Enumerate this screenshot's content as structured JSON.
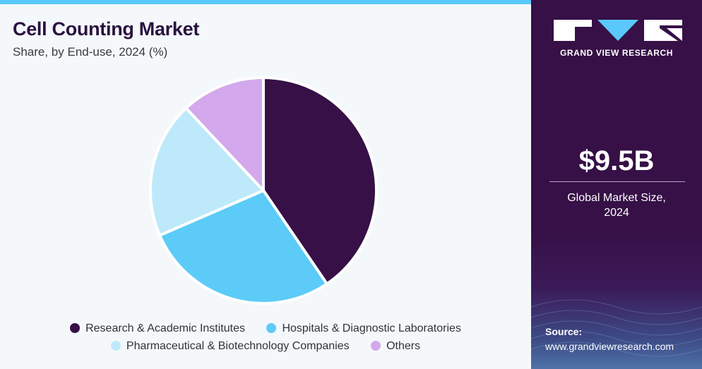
{
  "header": {
    "title": "Cell Counting Market",
    "subtitle": "Share, by End-use, 2024 (%)"
  },
  "sidebar": {
    "brand": "GRAND VIEW RESEARCH",
    "market_size": "$9.5B",
    "market_size_label_line1": "Global Market Size,",
    "market_size_label_line2": "2024",
    "source_label": "Source:",
    "source_url": "www.grandviewresearch.com"
  },
  "colors": {
    "accent_bar": "#5ac8fa",
    "sidebar_bg": "#361046",
    "title": "#2b1240"
  },
  "chart_data": {
    "type": "pie",
    "title": "Cell Counting Market",
    "subtitle": "Share, by End-use, 2024 (%)",
    "legend_position": "bottom",
    "slices": [
      {
        "label": "Research & Academic Institutes",
        "value": 40.5,
        "color": "#361046"
      },
      {
        "label": "Hospitals & Diagnostic Laboratories",
        "value": 28.0,
        "color": "#5ccbf8"
      },
      {
        "label": "Pharmaceutical & Biotechnology Companies",
        "value": 19.5,
        "color": "#bde9fa"
      },
      {
        "label": "Others",
        "value": 12.0,
        "color": "#d3a8ec"
      }
    ]
  }
}
